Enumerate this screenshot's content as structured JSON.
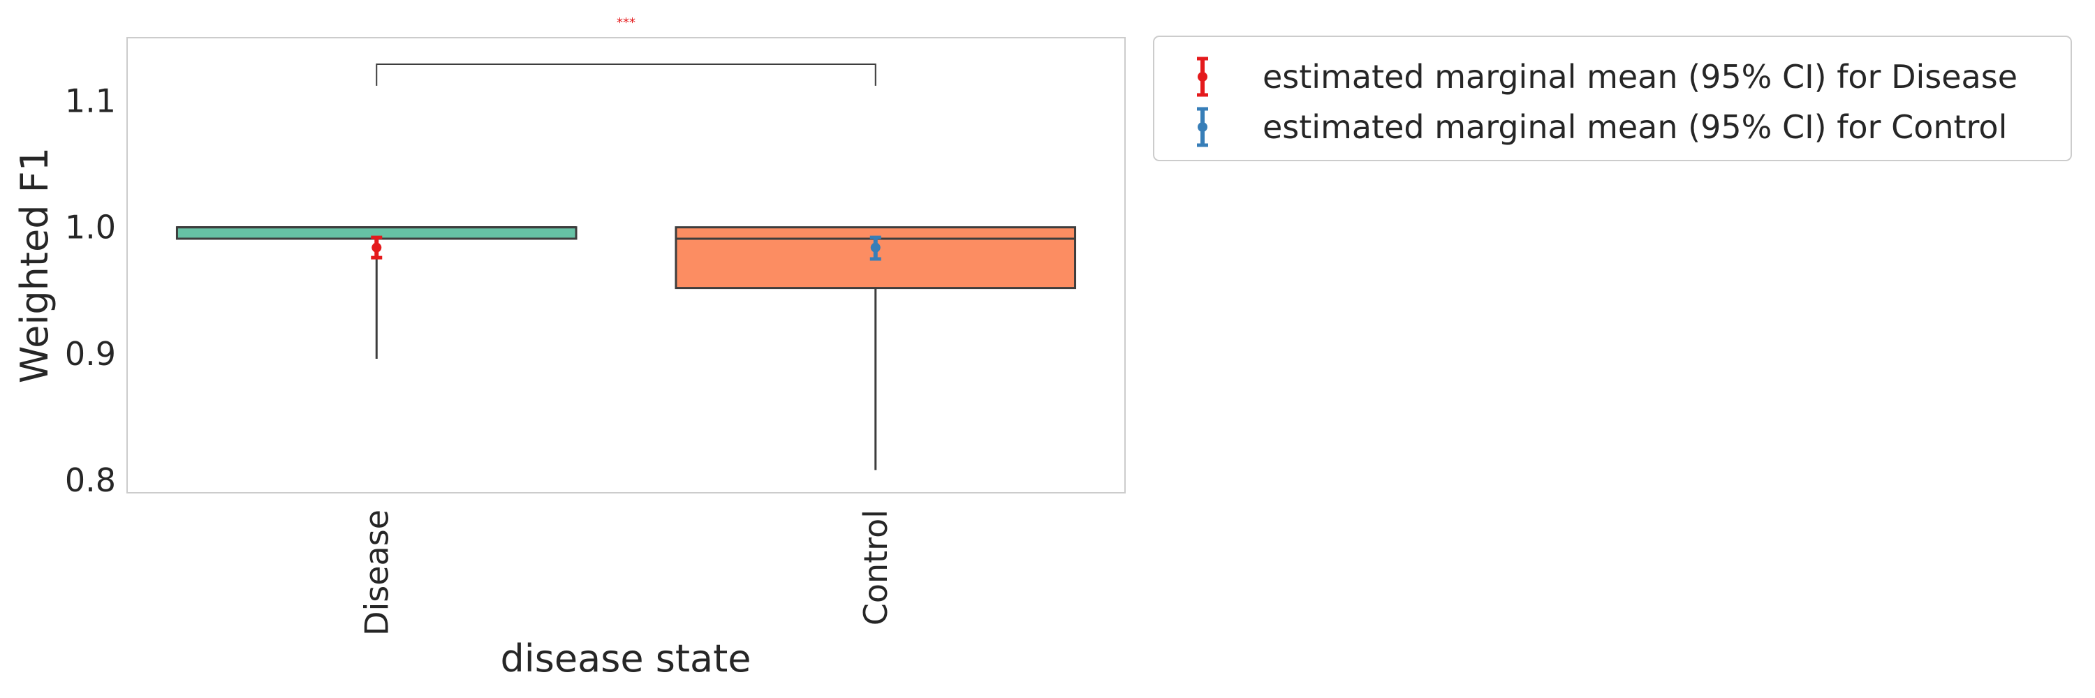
{
  "chart_data": {
    "type": "box",
    "xlabel": "disease state",
    "ylabel": "Weighted F1",
    "ylim": [
      0.79,
      1.15
    ],
    "yticks": [
      0.8,
      0.9,
      1.0,
      1.1
    ],
    "ytick_labels": [
      "0.8",
      "0.9",
      "1.0",
      "1.1"
    ],
    "categories": [
      "Disease",
      "Control"
    ],
    "grid": false,
    "boxes": [
      {
        "category": "Disease",
        "q1": 0.991,
        "median": 1.0,
        "q3": 1.0,
        "whisker_low": 0.896,
        "whisker_high": 1.0,
        "color": "#66c2a5"
      },
      {
        "category": "Control",
        "q1": 0.952,
        "median": 0.991,
        "q3": 1.0,
        "whisker_low": 0.808,
        "whisker_high": 1.0,
        "color": "#fc8d62"
      }
    ],
    "emm": [
      {
        "category": "Disease",
        "mean": 0.984,
        "ci_low": 0.976,
        "ci_high": 0.992,
        "color": "#e41a1c"
      },
      {
        "category": "Control",
        "mean": 0.984,
        "ci_low": 0.975,
        "ci_high": 0.992,
        "color": "#377eb8"
      }
    ],
    "significance": {
      "from": "Disease",
      "to": "Control",
      "label": "***",
      "y": 1.129,
      "drop_to": 1.112
    },
    "legend": {
      "placement": "outside-top-right",
      "entries": [
        {
          "label": "estimated marginal mean (95% CI) for Disease",
          "color": "#e41a1c"
        },
        {
          "label": "estimated marginal mean (95% CI) for Control",
          "color": "#377eb8"
        }
      ]
    }
  }
}
